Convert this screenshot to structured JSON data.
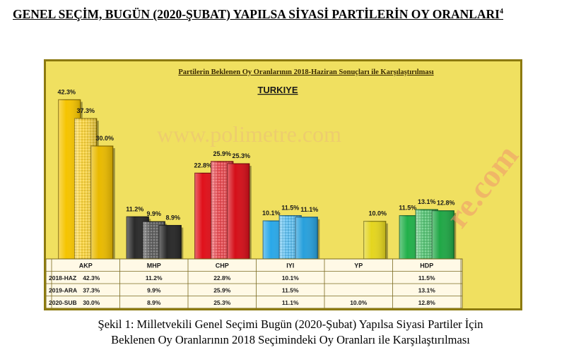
{
  "page": {
    "heading": "GENEL SEÇİM, BUGÜN (2020-ŞUBAT) YAPILSA SİYASİ PARTİLERİN OY ORANLARI",
    "heading_footnote": "4",
    "caption_line1": "Şekil 1: Milletvekili Genel Seçimi Bugün (2020-Şubat) Yapılsa Siyasi Partiler İçin",
    "caption_line2": "Beklenen Oy Oranlarının 2018 Seçimindeki Oy Oranları ile Karşılaştırılması",
    "watermark_main": "www.polimetre.com",
    "watermark_side": "re.com"
  },
  "chart_data": {
    "type": "bar",
    "title": "Partilerin Beklenen Oy Oranlarının 2018-Haziran Sonuçları ile Karşılaştırılması",
    "subtitle": "TURKIYE",
    "categories": [
      "AKP",
      "MHP",
      "CHP",
      "IYI",
      "YP",
      "HDP"
    ],
    "series": [
      {
        "name": "2018-HAZ",
        "values": [
          42.3,
          11.2,
          22.8,
          10.1,
          null,
          11.5
        ]
      },
      {
        "name": "2019-ARA",
        "values": [
          37.3,
          9.9,
          25.9,
          11.5,
          null,
          13.1
        ]
      },
      {
        "name": "2020-SUB",
        "values": [
          30.0,
          8.9,
          25.3,
          11.1,
          10.0,
          12.8
        ]
      }
    ],
    "data_labels": [
      [
        "42.3%",
        "11.2%",
        "22.8%",
        "10.1%",
        "",
        "11.5%"
      ],
      [
        "37.3%",
        "9.9%",
        "25.9%",
        "11.5%",
        "",
        "13.1%"
      ],
      [
        "30.0%",
        "8.9%",
        "25.3%",
        "11.1%",
        "10.0%",
        "12.8%"
      ]
    ],
    "table_rows": [
      {
        "label": "2018-HAZ",
        "cells": [
          "42.3%",
          "11.2%",
          "22.8%",
          "10.1%",
          "",
          "11.5%"
        ]
      },
      {
        "label": "2019-ARA",
        "cells": [
          "37.3%",
          "9.9%",
          "25.9%",
          "11.5%",
          "",
          "13.1%"
        ]
      },
      {
        "label": "2020-SUB",
        "cells": [
          "30.0%",
          "8.9%",
          "25.3%",
          "11.1%",
          "10.0%",
          "12.8%"
        ]
      }
    ],
    "ylim": [
      0,
      45
    ],
    "colors": {
      "AKP": "#f5c400",
      "MHP": "#2a2a2a",
      "CHP": "#e0101a",
      "IYI": "#2aa8e8",
      "YP": "#f0e020",
      "HDP": "#22b04a"
    },
    "background": "#f0e060",
    "grid": false,
    "legend": "table-below"
  }
}
